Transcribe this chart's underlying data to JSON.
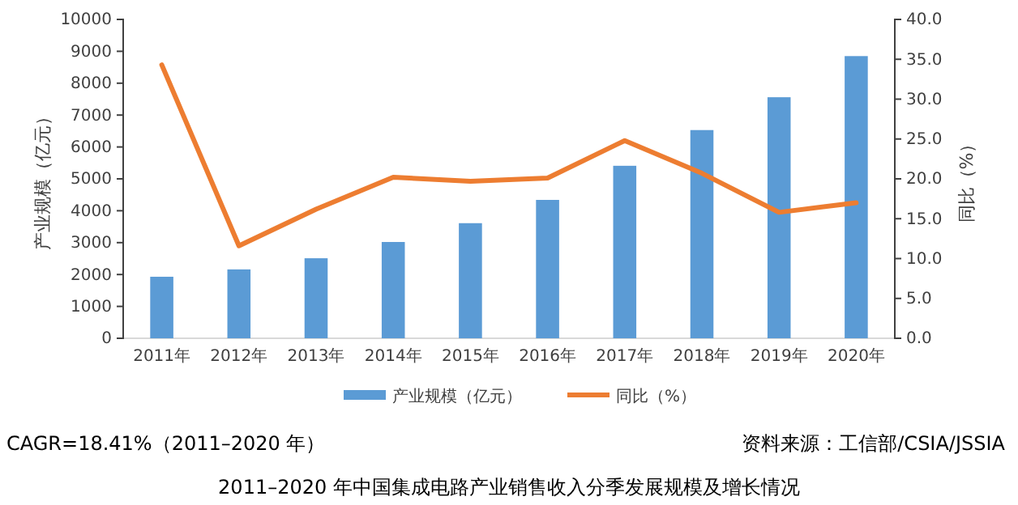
{
  "chart_data": {
    "type": "bar",
    "title": "2011–2020 年中国集成电路产业销售收入分季发展规模及增长情况",
    "ylabel": "产业规模（亿元）",
    "y2label": "同比（%）",
    "categories": [
      "2011年",
      "2012年",
      "2013年",
      "2014年",
      "2015年",
      "2016年",
      "2017年",
      "2018年",
      "2019年",
      "2020年"
    ],
    "series": [
      {
        "name": "产业规模（亿元）",
        "color": "#5b9bd5",
        "values": [
          1930,
          2160,
          2510,
          3020,
          3610,
          4340,
          5410,
          6530,
          7560,
          8850
        ]
      },
      {
        "name": "同比（%）",
        "type": "line",
        "axis": "y2",
        "color": "#ed7d31",
        "values": [
          34.3,
          11.6,
          16.2,
          20.2,
          19.7,
          20.1,
          24.8,
          20.7,
          15.8,
          17.0
        ]
      }
    ],
    "ylim": [
      0,
      10000
    ],
    "yticks": [
      0,
      1000,
      2000,
      3000,
      4000,
      5000,
      6000,
      7000,
      8000,
      9000,
      10000
    ],
    "y2lim": [
      0,
      40
    ],
    "y2ticks": [
      {
        "value": 0,
        "label": "0.0"
      },
      {
        "value": 5,
        "label": "5.0"
      },
      {
        "value": 10,
        "label": "10.0"
      },
      {
        "value": 15,
        "label": "15.0"
      },
      {
        "value": 20,
        "label": "20.0"
      },
      {
        "value": 25,
        "label": "25.0"
      },
      {
        "value": 30,
        "label": "30.0"
      },
      {
        "value": 35,
        "label": "35.0"
      },
      {
        "value": 40,
        "label": "40.0"
      }
    ],
    "legend": "bottom",
    "grid": false,
    "annotations": [
      "CAGR=18.41%（2011–2020 年）",
      "资料来源：工信部/CSIA/JSSIA"
    ]
  }
}
